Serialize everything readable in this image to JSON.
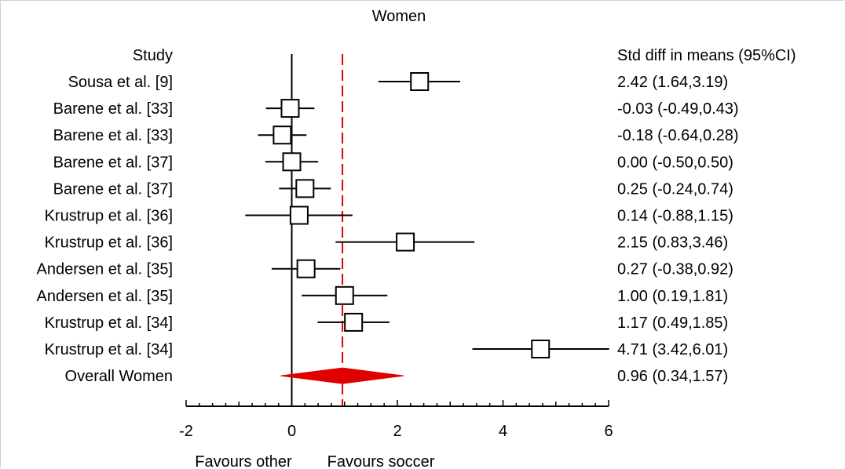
{
  "chart_data": {
    "type": "forest",
    "title": "Women",
    "study_header": "Study",
    "effect_header": "Std diff in means (95%CI)",
    "xlim": [
      -2,
      6
    ],
    "x_ticks": [
      "-2",
      "0",
      "2",
      "4",
      "6"
    ],
    "null_value": 0,
    "overall_line_value": 0.96,
    "xlabel_left": "Favours other",
    "xlabel_right": "Favours soccer",
    "studies": [
      {
        "label": "Sousa et al. [9]",
        "est": 2.42,
        "lo": 1.64,
        "hi": 3.19,
        "ci_text": "2.42 (1.64,3.19)"
      },
      {
        "label": "Barene et al. [33]",
        "est": -0.03,
        "lo": -0.49,
        "hi": 0.43,
        "ci_text": "-0.03 (-0.49,0.43)"
      },
      {
        "label": "Barene et al. [33]",
        "est": -0.18,
        "lo": -0.64,
        "hi": 0.28,
        "ci_text": "-0.18 (-0.64,0.28)"
      },
      {
        "label": "Barene et al. [37]",
        "est": 0.0,
        "lo": -0.5,
        "hi": 0.5,
        "ci_text": "0.00 (-0.50,0.50)"
      },
      {
        "label": "Barene et al. [37]",
        "est": 0.25,
        "lo": -0.24,
        "hi": 0.74,
        "ci_text": "0.25 (-0.24,0.74)"
      },
      {
        "label": "Krustrup et al. [36]",
        "est": 0.14,
        "lo": -0.88,
        "hi": 1.15,
        "ci_text": "0.14 (-0.88,1.15)"
      },
      {
        "label": "Krustrup et al. [36]",
        "est": 2.15,
        "lo": 0.83,
        "hi": 3.46,
        "ci_text": "2.15 (0.83,3.46)"
      },
      {
        "label": "Andersen et al. [35]",
        "est": 0.27,
        "lo": -0.38,
        "hi": 0.92,
        "ci_text": "0.27 (-0.38,0.92)"
      },
      {
        "label": "Andersen et al. [35]",
        "est": 1.0,
        "lo": 0.19,
        "hi": 1.81,
        "ci_text": "1.00 (0.19,1.81)"
      },
      {
        "label": "Krustrup et al. [34]",
        "est": 1.17,
        "lo": 0.49,
        "hi": 1.85,
        "ci_text": "1.17 (0.49,1.85)"
      },
      {
        "label": "Krustrup et al. [34]",
        "est": 4.71,
        "lo": 3.42,
        "hi": 6.01,
        "ci_text": "4.71 (3.42,6.01)"
      }
    ],
    "overall": {
      "label": "Overall Women",
      "est": 0.96,
      "lo": 0.34,
      "hi": 1.57,
      "ci_text": "0.96 (0.34,1.57)"
    },
    "colors": {
      "overall": "#e00000",
      "reference_line": "#e00000",
      "marks": "#000000"
    }
  }
}
